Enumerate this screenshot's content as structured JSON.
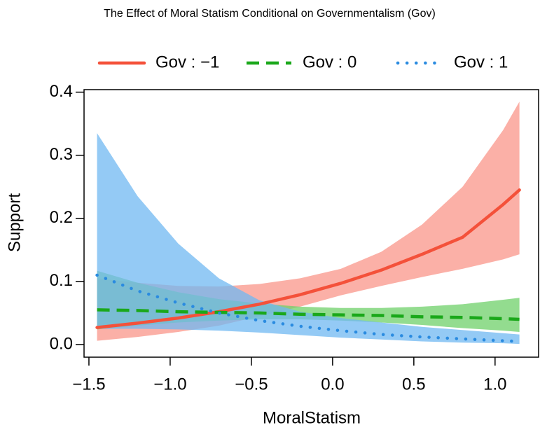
{
  "chart_data": {
    "type": "line",
    "title": "The Effect of Moral Statism Conditional on Governmentalism (Gov)",
    "x_label": "MoralStatism",
    "y_label": "Support",
    "x": [
      -1.45,
      -1.2,
      -0.95,
      -0.7,
      -0.45,
      -0.2,
      0.05,
      0.3,
      0.55,
      0.8,
      1.05,
      1.15
    ],
    "series": [
      {
        "name": "Gov : −1",
        "color": "#f4513a",
        "band_color": "#f9968a",
        "linestyle": "solid",
        "values": [
          0.027,
          0.034,
          0.042,
          0.052,
          0.064,
          0.079,
          0.097,
          0.118,
          0.143,
          0.17,
          0.222,
          0.245
        ],
        "lower": [
          0.006,
          0.012,
          0.02,
          0.03,
          0.045,
          0.06,
          0.078,
          0.093,
          0.107,
          0.12,
          0.135,
          0.143
        ],
        "upper": [
          0.105,
          0.098,
          0.093,
          0.092,
          0.096,
          0.105,
          0.12,
          0.147,
          0.19,
          0.25,
          0.34,
          0.385
        ]
      },
      {
        "name": "Gov : 0",
        "color": "#1aa81a",
        "band_color": "#6fd06a",
        "linestyle": "dashed",
        "values": [
          0.055,
          0.054,
          0.052,
          0.051,
          0.05,
          0.048,
          0.047,
          0.046,
          0.044,
          0.043,
          0.041,
          0.04
        ],
        "lower": [
          0.024,
          0.03,
          0.035,
          0.038,
          0.04,
          0.04,
          0.038,
          0.035,
          0.031,
          0.026,
          0.022,
          0.02
        ],
        "upper": [
          0.117,
          0.098,
          0.083,
          0.072,
          0.065,
          0.06,
          0.058,
          0.058,
          0.06,
          0.064,
          0.071,
          0.074
        ]
      },
      {
        "name": "Gov : 1",
        "color": "#2a8be0",
        "band_color": "#70b8f2",
        "linestyle": "dotted",
        "values": [
          0.11,
          0.085,
          0.066,
          0.05,
          0.038,
          0.029,
          0.022,
          0.016,
          0.012,
          0.009,
          0.006,
          0.005
        ],
        "lower": [
          0.025,
          0.025,
          0.024,
          0.022,
          0.019,
          0.015,
          0.011,
          0.008,
          0.005,
          0.003,
          0.002,
          0.001
        ],
        "upper": [
          0.335,
          0.235,
          0.16,
          0.105,
          0.07,
          0.052,
          0.042,
          0.035,
          0.028,
          0.023,
          0.018,
          0.016
        ]
      }
    ],
    "xlim": [
      -1.53,
      1.268
    ],
    "ylim": [
      -0.02,
      0.404
    ],
    "xticks": [
      {
        "value": -1.5,
        "label": "−1.5"
      },
      {
        "value": -1.0,
        "label": "−1.0"
      },
      {
        "value": -0.5,
        "label": "−0.5"
      },
      {
        "value": 0,
        "label": "0.0"
      },
      0.5,
      {
        "value": 1.0,
        "label": "1.0"
      }
    ],
    "yticks": [
      {
        "value": 0,
        "label": "0.0"
      },
      0.1,
      0.2,
      0.3,
      0.4
    ],
    "legend": "top"
  }
}
